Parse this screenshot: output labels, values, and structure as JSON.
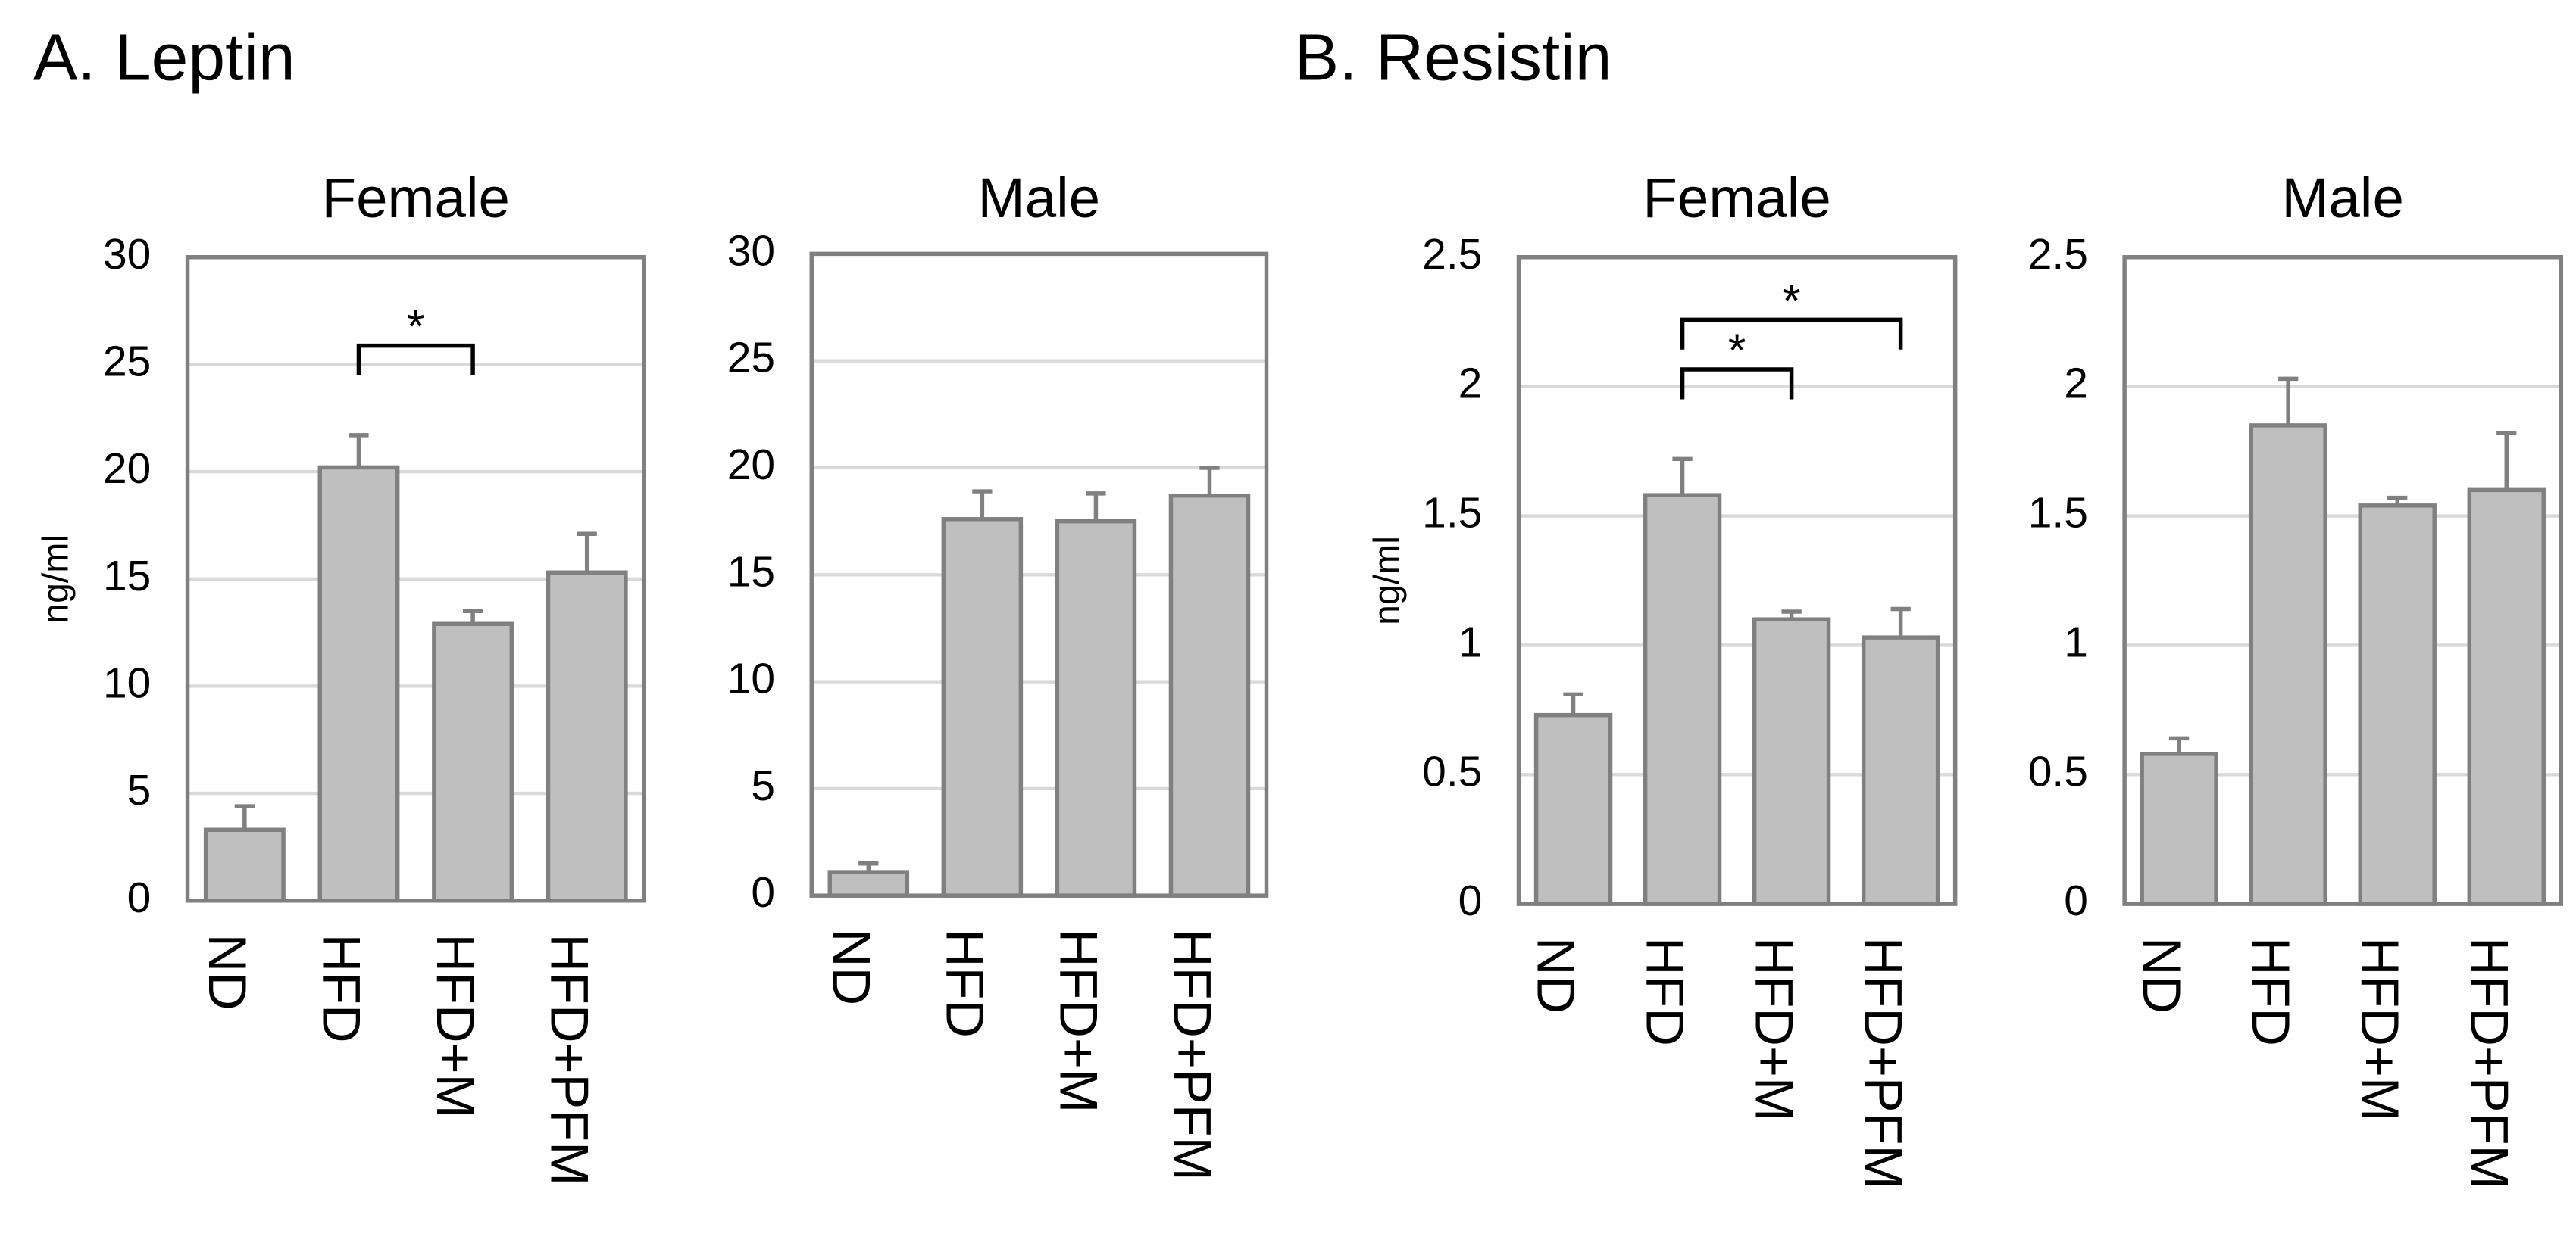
{
  "panel_titles": [
    "A.  Leptin",
    "B. Resistin"
  ],
  "chart_data": [
    {
      "type": "bar",
      "title": "Female",
      "y_label": "ng/ml",
      "categories": [
        "ND",
        "HFD",
        "HFD+M",
        "HFD+PFM"
      ],
      "values": [
        3.3,
        20.2,
        12.9,
        15.3
      ],
      "errors": [
        1.1,
        1.5,
        0.6,
        1.8
      ],
      "color": "#bfbfbf",
      "ylim": [
        0,
        30
      ],
      "yticks": [
        0,
        5,
        10,
        15,
        20,
        25,
        30
      ],
      "grid": true,
      "significance": [
        {
          "groups": [
            "HFD",
            "HFD+M"
          ],
          "label": "*"
        }
      ]
    },
    {
      "type": "bar",
      "title": "Male",
      "categories": [
        "ND",
        "HFD",
        "HFD+M",
        "HFD+PFM"
      ],
      "values": [
        1.1,
        17.6,
        17.5,
        18.7
      ],
      "errors": [
        0.4,
        1.3,
        1.3,
        1.3
      ],
      "color": "#bfbfbf",
      "ylim": [
        0,
        30
      ],
      "yticks": [
        0,
        5,
        10,
        15,
        20,
        25,
        30
      ],
      "grid": true
    },
    {
      "type": "bar",
      "title": "Female",
      "y_label": "ng/ml",
      "categories": [
        "ND",
        "HFD",
        "HFD+M",
        "HFD+PFM"
      ],
      "values": [
        0.73,
        1.58,
        1.1,
        1.03
      ],
      "errors": [
        0.08,
        0.14,
        0.03,
        0.11
      ],
      "color": "#bfbfbf",
      "ylim": [
        0,
        2.5
      ],
      "yticks": [
        0,
        0.5,
        1,
        1.5,
        2,
        2.5
      ],
      "grid": true,
      "significance": [
        {
          "groups": [
            "HFD",
            "HFD+M"
          ],
          "label": "*"
        },
        {
          "groups": [
            "HFD",
            "HFD+PFM"
          ],
          "label": "*"
        }
      ]
    },
    {
      "type": "bar",
      "title": "Male",
      "categories": [
        "ND",
        "HFD",
        "HFD+M",
        "HFD+PFM"
      ],
      "values": [
        0.58,
        1.85,
        1.54,
        1.6
      ],
      "errors": [
        0.06,
        0.18,
        0.03,
        0.22
      ],
      "color": "#bfbfbf",
      "ylim": [
        0,
        2.5
      ],
      "yticks": [
        0,
        0.5,
        1,
        1.5,
        2,
        2.5
      ],
      "grid": true
    }
  ]
}
